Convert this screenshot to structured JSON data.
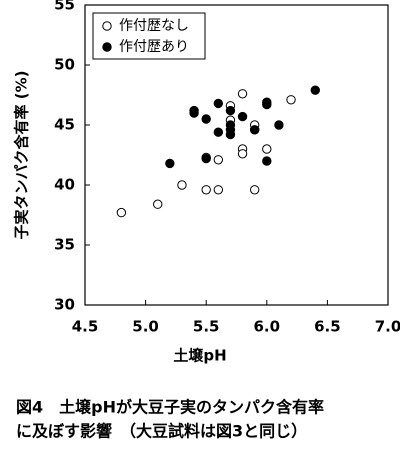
{
  "chart_data": {
    "type": "scatter",
    "x_label": "土壌pH",
    "y_label": "子実タンパク含有率 (%)",
    "caption": [
      "図4　土壌pHが大豆子実のタンパク含有率",
      "に及ぼす影響　（大豆試料は図3と同じ）"
    ],
    "xlim": [
      4.5,
      7.0
    ],
    "xticks": [
      4.5,
      {
        "value": 5.0,
        "label": "5.0"
      },
      5.5,
      {
        "value": 6.0,
        "label": "6.0"
      },
      6.5,
      {
        "value": 7.0,
        "label": "7.0"
      }
    ],
    "ylim": [
      30,
      55
    ],
    "yticks": [
      30,
      35,
      40,
      45,
      50,
      55
    ],
    "legend": "top-left",
    "series": [
      {
        "name": "作付歴なし",
        "color": "#ffffff",
        "x": [
          4.8,
          5.1,
          5.3,
          5.5,
          5.6,
          5.9,
          5.5,
          5.6,
          5.8,
          5.8,
          6.0,
          5.9,
          5.9,
          5.7,
          5.8,
          6.2,
          5.7
        ],
        "values": [
          37.7,
          38.4,
          40.0,
          39.6,
          39.6,
          39.6,
          42.3,
          42.1,
          43.0,
          42.6,
          43.0,
          45.0,
          44.6,
          46.6,
          47.6,
          47.1,
          45.4
        ]
      },
      {
        "name": "作付歴あり",
        "color": "#000000",
        "x": [
          5.2,
          5.4,
          5.4,
          5.5,
          5.6,
          5.6,
          5.7,
          5.7,
          5.7,
          5.7,
          5.8,
          5.9,
          5.5,
          6.0,
          6.0,
          6.0,
          6.1,
          6.4
        ],
        "values": [
          41.8,
          46.2,
          46.0,
          45.5,
          46.8,
          44.4,
          45.0,
          44.6,
          44.2,
          46.2,
          45.7,
          44.6,
          42.2,
          46.9,
          46.7,
          42.0,
          45.0,
          47.9
        ]
      }
    ]
  }
}
